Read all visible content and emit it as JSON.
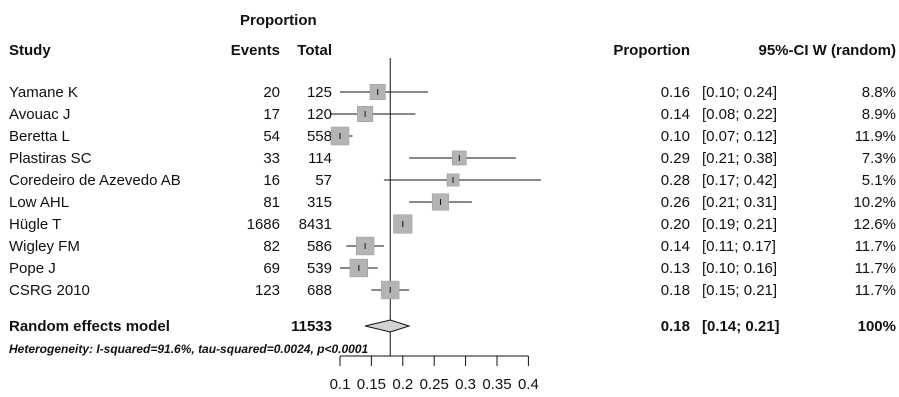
{
  "header": {
    "proportion_group": "Proportion",
    "study": "Study",
    "events": "Events",
    "total": "Total",
    "proportion": "Proportion",
    "ci_weight": "95%-CI W (random)"
  },
  "chart_data": {
    "type": "forest",
    "title": "",
    "xlabel": "",
    "ylabel": "",
    "xlim": [
      0.08,
      0.41
    ],
    "x_ticks": [
      0.1,
      0.15,
      0.2,
      0.25,
      0.3,
      0.35,
      0.4
    ],
    "x_tick_labels": [
      "0.1",
      "0.15",
      "0.2",
      "0.25",
      "0.3",
      "0.35",
      "0.4"
    ],
    "reference_line": 0.18,
    "studies": [
      {
        "name": "Yamane K",
        "events": "20",
        "total": "125",
        "prop": 0.16,
        "lo": 0.1,
        "hi": 0.24,
        "prop_text": "0.16",
        "ci_text": "[0.10; 0.24]",
        "weight_text": "8.8%",
        "weight": 8.8
      },
      {
        "name": "Avouac J",
        "events": "17",
        "total": "120",
        "prop": 0.14,
        "lo": 0.08,
        "hi": 0.22,
        "prop_text": "0.14",
        "ci_text": "[0.08; 0.22]",
        "weight_text": "8.9%",
        "weight": 8.9
      },
      {
        "name": "Beretta L",
        "events": "54",
        "total": "558",
        "prop": 0.1,
        "lo": 0.07,
        "hi": 0.12,
        "prop_text": "0.10",
        "ci_text": "[0.07; 0.12]",
        "weight_text": "11.9%",
        "weight": 11.9
      },
      {
        "name": "Plastiras SC",
        "events": "33",
        "total": "114",
        "prop": 0.29,
        "lo": 0.21,
        "hi": 0.38,
        "prop_text": "0.29",
        "ci_text": "[0.21; 0.38]",
        "weight_text": "7.3%",
        "weight": 7.3
      },
      {
        "name": "Coredeiro de Azevedo AB",
        "events": "16",
        "total": "57",
        "prop": 0.28,
        "lo": 0.17,
        "hi": 0.42,
        "prop_text": "0.28",
        "ci_text": "[0.17; 0.42]",
        "weight_text": "5.1%",
        "weight": 5.1
      },
      {
        "name": "Low AHL",
        "events": "81",
        "total": "315",
        "prop": 0.26,
        "lo": 0.21,
        "hi": 0.31,
        "prop_text": "0.26",
        "ci_text": "[0.21; 0.31]",
        "weight_text": "10.2%",
        "weight": 10.2
      },
      {
        "name": "Hügle T",
        "events": "1686",
        "total": "8431",
        "prop": 0.2,
        "lo": 0.19,
        "hi": 0.21,
        "prop_text": "0.20",
        "ci_text": "[0.19; 0.21]",
        "weight_text": "12.6%",
        "weight": 12.6
      },
      {
        "name": "Wigley FM",
        "events": "82",
        "total": "586",
        "prop": 0.14,
        "lo": 0.11,
        "hi": 0.17,
        "prop_text": "0.14",
        "ci_text": "[0.11; 0.17]",
        "weight_text": "11.7%",
        "weight": 11.7
      },
      {
        "name": "Pope J",
        "events": "69",
        "total": "539",
        "prop": 0.13,
        "lo": 0.1,
        "hi": 0.16,
        "prop_text": "0.13",
        "ci_text": "[0.10; 0.16]",
        "weight_text": "11.7%",
        "weight": 11.7
      },
      {
        "name": "CSRG 2010",
        "events": "123",
        "total": "688",
        "prop": 0.18,
        "lo": 0.15,
        "hi": 0.21,
        "prop_text": "0.18",
        "ci_text": "[0.15; 0.21]",
        "weight_text": "11.7%",
        "weight": 11.7
      }
    ],
    "summary": {
      "name": "Random effects model",
      "total": "11533",
      "prop": 0.18,
      "lo": 0.14,
      "hi": 0.21,
      "prop_text": "0.18",
      "ci_text": "[0.14; 0.21]",
      "weight_text": "100%"
    },
    "heterogeneity": "Heterogeneity: I-squared=91.6%, tau-squared=0.0024, p<0.0001",
    "colors": {
      "square": "#b4b4b4",
      "line": "#111111",
      "diamond_fill": "#d2d2d2"
    }
  }
}
